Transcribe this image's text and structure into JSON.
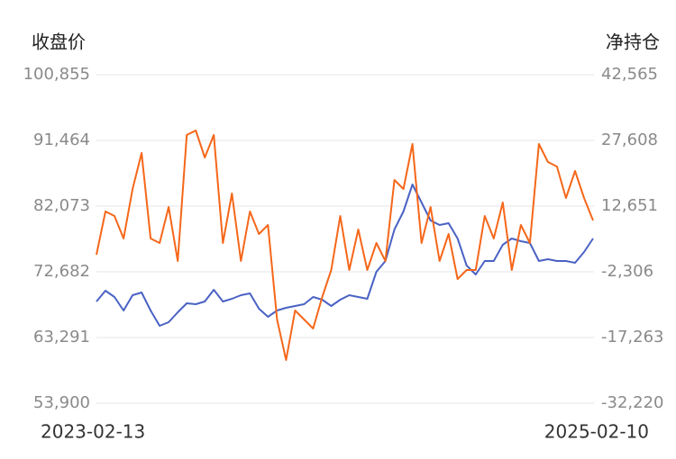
{
  "chart_data": {
    "type": "line",
    "ylabel": "收盘价",
    "y2label": "净持仓",
    "categories": [
      "2023-02-13",
      null,
      null,
      null,
      null,
      null,
      null,
      null,
      null,
      null,
      null,
      null,
      null,
      null,
      null,
      null,
      null,
      null,
      null,
      null,
      null,
      null,
      null,
      null,
      null,
      null,
      null,
      null,
      null,
      null,
      null,
      null,
      null,
      null,
      null,
      null,
      null,
      null,
      null,
      null,
      null,
      null,
      null,
      null,
      null,
      null,
      null,
      null,
      null,
      null,
      null,
      null,
      null,
      null,
      null,
      "2025-02-10"
    ],
    "series": [
      {
        "color": "#4a62c4",
        "axis": "y",
        "values": [
          68437,
          69981,
          69080,
          67150,
          69337,
          69723,
          67150,
          64964,
          65478,
          66893,
          68180,
          68051,
          68437,
          70109,
          68437,
          68823,
          69337,
          69595,
          67408,
          66250,
          67150,
          67536,
          67794,
          68051,
          69080,
          68694,
          67794,
          68694,
          69337,
          69080,
          68823,
          72682,
          74226,
          78728,
          81301,
          85160,
          82587,
          80014,
          79371,
          79629,
          77442,
          73582,
          72296,
          74226,
          74226,
          76541,
          77442,
          77056,
          76798,
          74226,
          74483,
          74226,
          74226,
          73968,
          75512,
          77442
        ]
      },
      {
        "color": "#f5671a",
        "axis": "y2",
        "values": [
          1587,
          11422,
          10398,
          5275,
          16545,
          24741,
          5275,
          4251,
          12447,
          153,
          28839,
          29863,
          23716,
          28839,
          4251,
          15520,
          153,
          11422,
          6300,
          8349,
          -13166,
          -22386,
          -11117,
          -13166,
          -15215,
          -8043,
          -1896,
          10398,
          -1896,
          7324,
          -1896,
          4251,
          153,
          18594,
          16545,
          26790,
          4251,
          12447,
          153,
          6300,
          -3945,
          -1896,
          -1896,
          10398,
          5275,
          13471,
          -1896,
          8349,
          4251,
          26790,
          22692,
          21667,
          14496,
          20643,
          14496,
          9373
        ]
      }
    ],
    "ylim": [
      53900,
      100855
    ],
    "yticks": [
      {
        "value": 53900,
        "label": "53,900"
      },
      {
        "value": 63291,
        "label": "63,291"
      },
      {
        "value": 72682,
        "label": "72,682"
      },
      {
        "value": 82073,
        "label": "82,073"
      },
      {
        "value": 91464,
        "label": "91,464"
      },
      {
        "value": 100855,
        "label": "100,855"
      }
    ],
    "y2lim": [
      -32220,
      42565
    ],
    "y2ticks": [
      {
        "value": -32220,
        "label": "-32,220"
      },
      {
        "value": -17263,
        "label": "-17,263"
      },
      {
        "value": -2306,
        "label": "-2,306"
      },
      {
        "value": 12651,
        "label": "12,651"
      },
      {
        "value": 27608,
        "label": "27,608"
      },
      {
        "value": 42565,
        "label": "42,565"
      }
    ],
    "grid": true
  }
}
